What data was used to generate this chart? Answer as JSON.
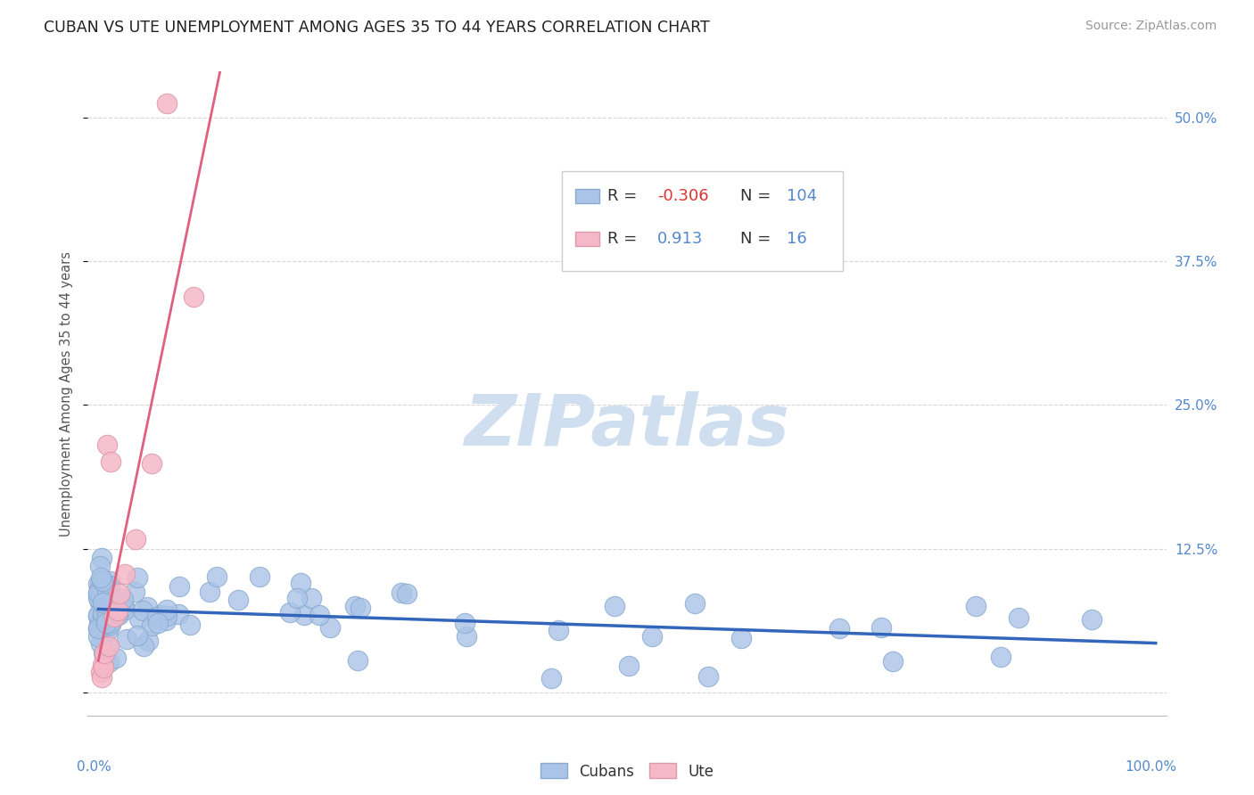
{
  "title": "CUBAN VS UTE UNEMPLOYMENT AMONG AGES 35 TO 44 YEARS CORRELATION CHART",
  "source": "Source: ZipAtlas.com",
  "ylabel": "Unemployment Among Ages 35 to 44 years",
  "ytick_vals": [
    0.0,
    0.125,
    0.25,
    0.375,
    0.5
  ],
  "ytick_labels": [
    "",
    "12.5%",
    "25.0%",
    "37.5%",
    "50.0%"
  ],
  "cubans_R": -0.306,
  "cubans_N": 104,
  "ute_R": 0.913,
  "ute_N": 16,
  "cubans_color": "#aac4e8",
  "cubans_edge_color": "#88aacc",
  "cubans_line_color": "#3366bb",
  "ute_color": "#f5b8c8",
  "ute_edge_color": "#dd99aa",
  "ute_line_color": "#e06080",
  "background_color": "#ffffff",
  "grid_color": "#cccccc",
  "watermark_color": "#d0dff0",
  "title_color": "#222222",
  "source_color": "#999999",
  "axis_label_color": "#555555",
  "tick_label_color": "#5588cc",
  "r_negative_color": "#dd3333",
  "r_positive_color": "#5588cc",
  "n_color": "#5588cc",
  "legend_text_color": "#333333"
}
